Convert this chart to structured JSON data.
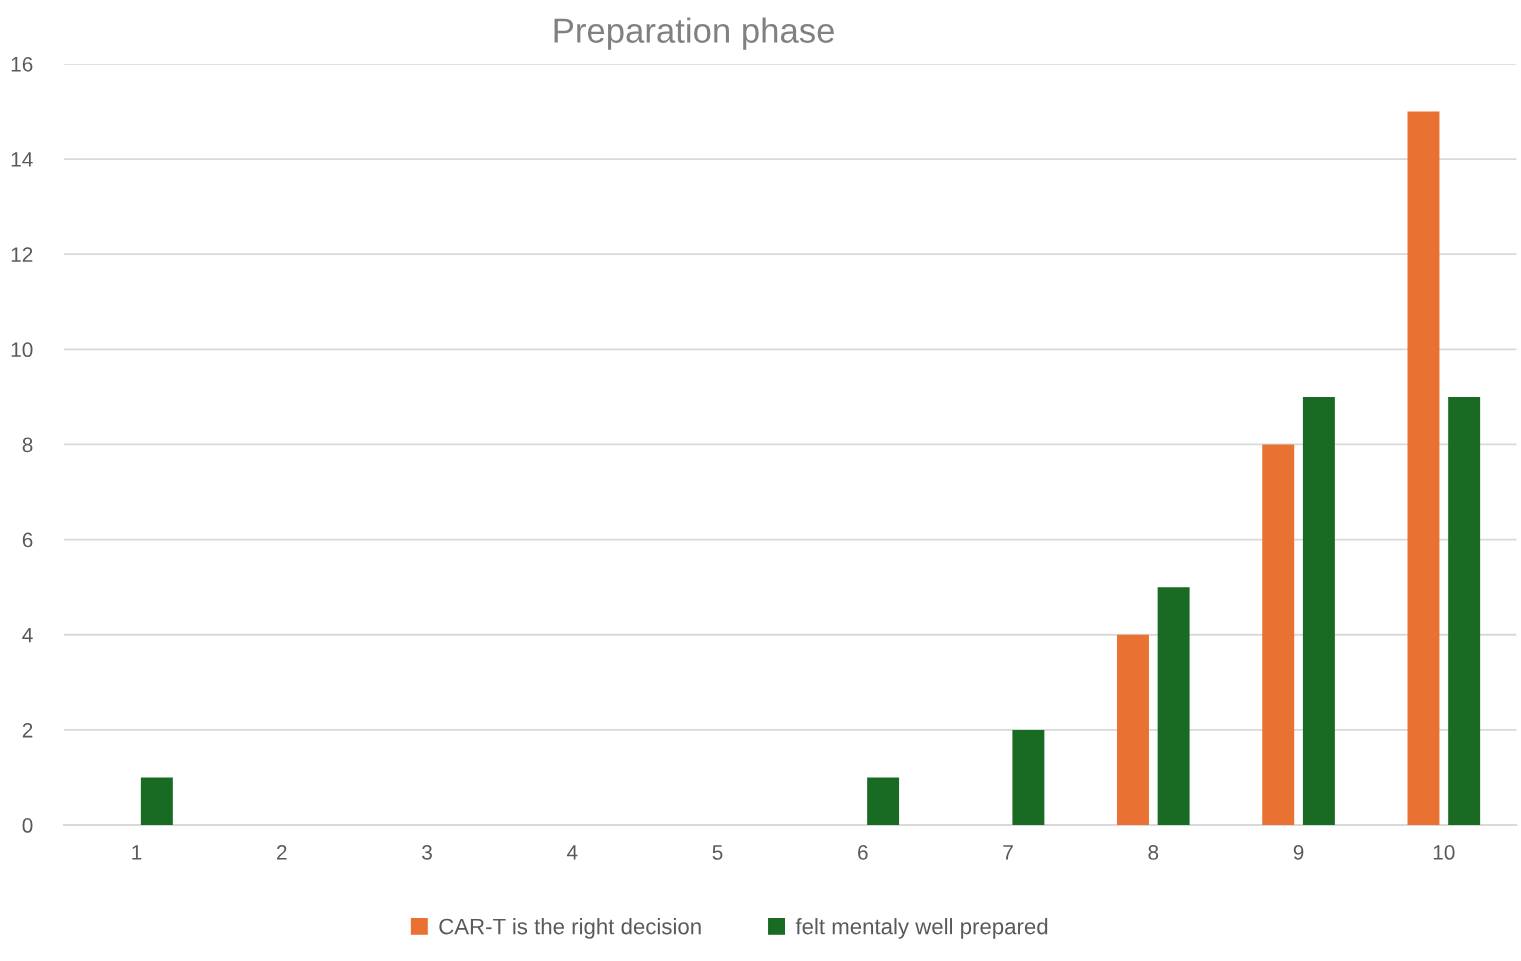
{
  "chart_data": {
    "type": "bar",
    "title": "Preparation phase",
    "categories": [
      "1",
      "2",
      "3",
      "4",
      "5",
      "6",
      "7",
      "8",
      "9",
      "10"
    ],
    "series": [
      {
        "name": "CAR-T is the right decision",
        "color": "#e97132",
        "values": [
          0,
          0,
          0,
          0,
          0,
          0,
          0,
          4,
          8,
          15
        ]
      },
      {
        "name": "felt mentaly well prepared",
        "color": "#196b24",
        "values": [
          1,
          0,
          0,
          0,
          0,
          1,
          2,
          5,
          9,
          9
        ]
      }
    ],
    "ylim": [
      0,
      16
    ],
    "yticks": [
      0,
      2,
      4,
      6,
      8,
      10,
      12,
      14,
      16
    ],
    "grid": "y",
    "legend": "bottom"
  }
}
